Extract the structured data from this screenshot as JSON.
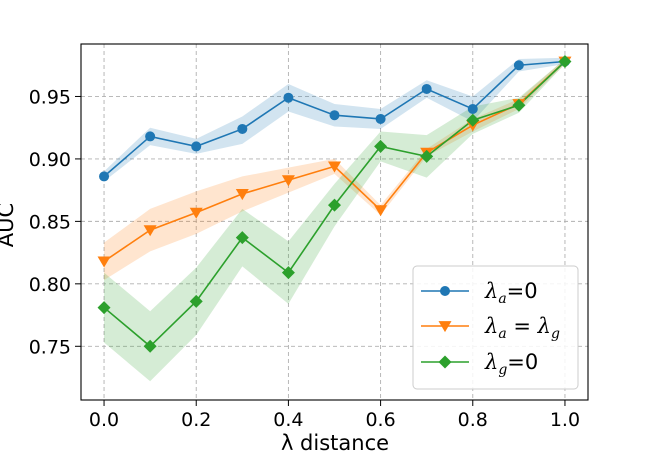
{
  "chart_data": {
    "type": "line",
    "title": "",
    "xlabel": "λ distance",
    "ylabel": "AUC",
    "x": [
      0.0,
      0.1,
      0.2,
      0.3,
      0.4,
      0.5,
      0.6,
      0.7,
      0.8,
      0.9,
      1.0
    ],
    "xlim": [
      -0.05,
      1.05
    ],
    "ylim": [
      0.707,
      0.992
    ],
    "xticks": [
      0.0,
      0.2,
      0.4,
      0.6,
      0.8,
      1.0
    ],
    "xtick_labels": [
      "0.0",
      "0.2",
      "0.4",
      "0.6",
      "0.8",
      "1.0"
    ],
    "yticks": [
      0.75,
      0.8,
      0.85,
      0.9,
      0.95
    ],
    "ytick_labels": [
      "0.75",
      "0.80",
      "0.85",
      "0.90",
      "0.95"
    ],
    "grid": true,
    "legend_position": "bottom-right",
    "series": [
      {
        "name": "λa=0",
        "legend_parts": {
          "sym": "λ",
          "sub": "a",
          "rest": "=0"
        },
        "color": "#1f77b4",
        "marker": "circle",
        "values": [
          0.886,
          0.918,
          0.91,
          0.924,
          0.949,
          0.935,
          0.932,
          0.956,
          0.94,
          0.975,
          0.978
        ],
        "band_lower": [
          0.882,
          0.911,
          0.904,
          0.912,
          0.938,
          0.926,
          0.924,
          0.949,
          0.93,
          0.97,
          0.976
        ],
        "band_upper": [
          0.89,
          0.925,
          0.916,
          0.934,
          0.96,
          0.944,
          0.94,
          0.963,
          0.95,
          0.98,
          0.981
        ]
      },
      {
        "name": "λa=λg",
        "legend_parts": {
          "sym": "λ",
          "sub": "a",
          "rest": " = ",
          "sym2": "λ",
          "sub2": "g"
        },
        "color": "#ff7f0e",
        "marker": "triangle-down",
        "values": [
          0.818,
          0.843,
          0.857,
          0.872,
          0.883,
          0.894,
          0.859,
          0.905,
          0.927,
          0.944,
          0.978
        ],
        "band_lower": [
          0.803,
          0.826,
          0.84,
          0.858,
          0.873,
          0.888,
          0.855,
          0.902,
          0.922,
          0.94,
          0.976
        ],
        "band_upper": [
          0.833,
          0.86,
          0.874,
          0.886,
          0.893,
          0.9,
          0.863,
          0.908,
          0.932,
          0.948,
          0.98
        ]
      },
      {
        "name": "λg=0",
        "legend_parts": {
          "sym": "λ",
          "sub": "g",
          "rest": "=0"
        },
        "color": "#2ca02c",
        "marker": "diamond",
        "values": [
          0.781,
          0.75,
          0.786,
          0.837,
          0.809,
          0.863,
          0.91,
          0.902,
          0.931,
          0.943,
          0.978
        ],
        "band_lower": [
          0.753,
          0.722,
          0.759,
          0.814,
          0.784,
          0.846,
          0.898,
          0.885,
          0.92,
          0.937,
          0.976
        ],
        "band_upper": [
          0.809,
          0.778,
          0.813,
          0.86,
          0.834,
          0.88,
          0.922,
          0.919,
          0.942,
          0.949,
          0.98
        ]
      }
    ]
  }
}
